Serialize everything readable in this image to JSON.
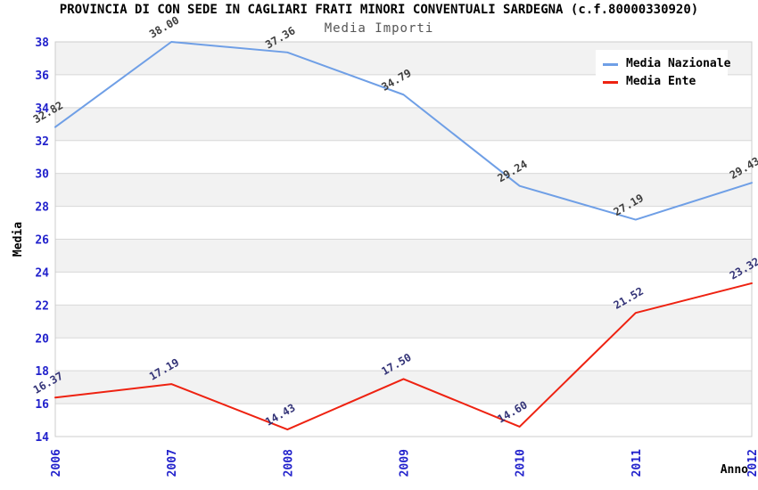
{
  "title": "PROVINCIA DI CON SEDE IN CAGLIARI FRATI MINORI CONVENTUALI SARDEGNA (c.f.80000330920)",
  "subtitle": "Media Importi",
  "chart_data": {
    "type": "line",
    "x": [
      "2006",
      "2007",
      "2008",
      "2009",
      "2010",
      "2011",
      "2012"
    ],
    "xlabel": "Anno",
    "ylabel": "Media",
    "ylim": [
      14,
      38
    ],
    "ytick_step": 2,
    "grid": "horizontal gridlines with alternating gray/white bands",
    "legend_position": "top-right",
    "series": [
      {
        "name": "Media Nazionale",
        "color": "#6f9fe6",
        "label_color": "#3f3f3f",
        "values": [
          32.82,
          38.0,
          37.36,
          34.79,
          29.24,
          27.19,
          29.43
        ]
      },
      {
        "name": "Media Ente",
        "color": "#ee2211",
        "label_color": "#333377",
        "values": [
          16.37,
          17.19,
          14.43,
          17.5,
          14.6,
          21.52,
          23.32
        ]
      }
    ]
  },
  "colors": {
    "tick_label": "#2222cc",
    "axis_title": "#000000",
    "band_gray": "#f2f2f2",
    "band_white": "#ffffff",
    "gridline": "#d8d8d8",
    "plot_border": "#cccccc",
    "background": "#ffffff"
  }
}
